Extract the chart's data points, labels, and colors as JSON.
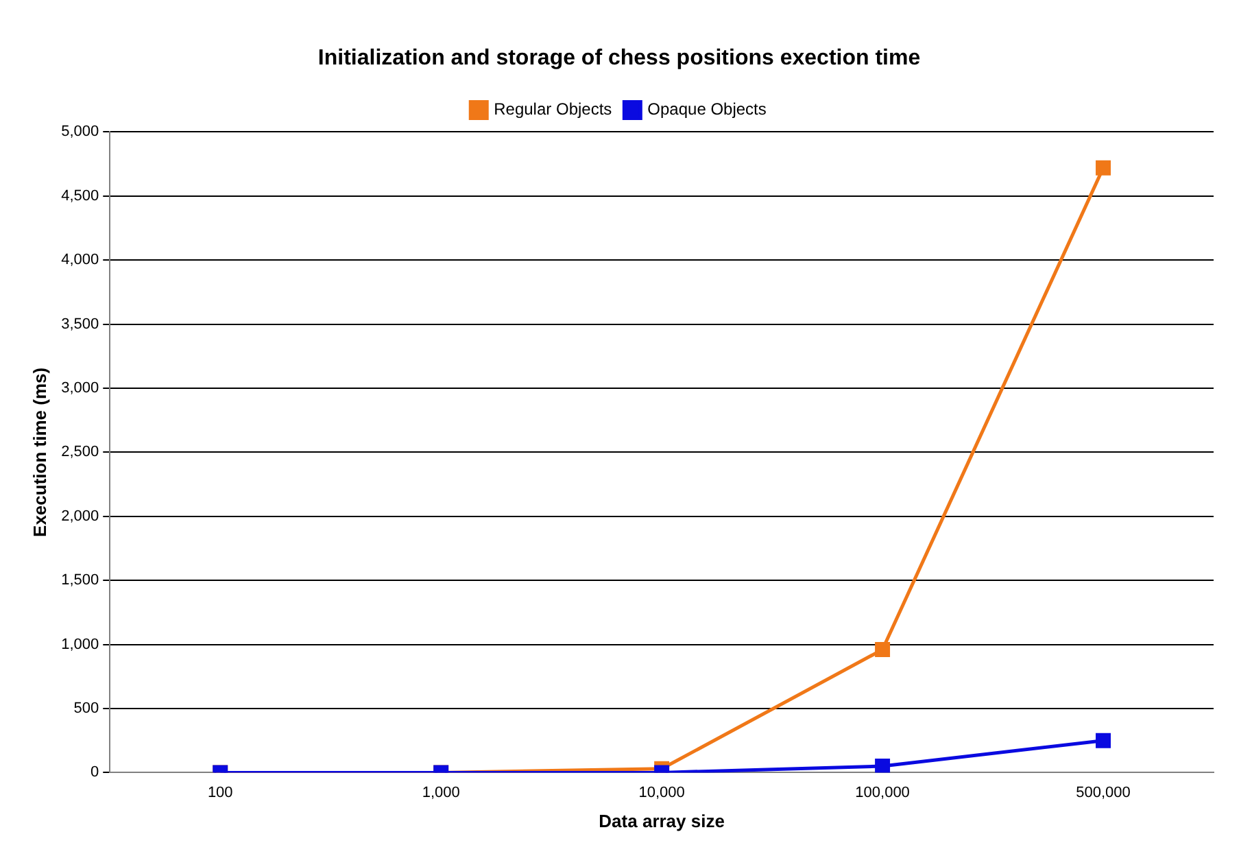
{
  "chart_data": {
    "type": "line",
    "title": "Initialization and storage of chess positions exection time",
    "xlabel": "Data array size",
    "ylabel": "Execution time (ms)",
    "categories": [
      "100",
      "1,000",
      "10,000",
      "100,000",
      "500,000"
    ],
    "series": [
      {
        "name": "Regular Objects",
        "color": "#f07818",
        "values": [
          0,
          0,
          30,
          960,
          4720
        ]
      },
      {
        "name": "Opaque Objects",
        "color": "#0a0ae0",
        "values": [
          0,
          0,
          0,
          50,
          250
        ]
      }
    ],
    "ylim": [
      0,
      5000
    ],
    "yticks": [
      {
        "value": 0,
        "label": "0"
      },
      {
        "value": 500,
        "label": "500"
      },
      {
        "value": 1000,
        "label": "1,000"
      },
      {
        "value": 1500,
        "label": "1,500"
      },
      {
        "value": 2000,
        "label": "2,000"
      },
      {
        "value": 2500,
        "label": "2,500"
      },
      {
        "value": 3000,
        "label": "3,000"
      },
      {
        "value": 3500,
        "label": "3,500"
      },
      {
        "value": 4000,
        "label": "4,000"
      },
      {
        "value": 4500,
        "label": "4,500"
      },
      {
        "value": 5000,
        "label": "5,000"
      }
    ],
    "grid": "y",
    "legend": "top",
    "marker": "square",
    "line_style": "solid"
  }
}
